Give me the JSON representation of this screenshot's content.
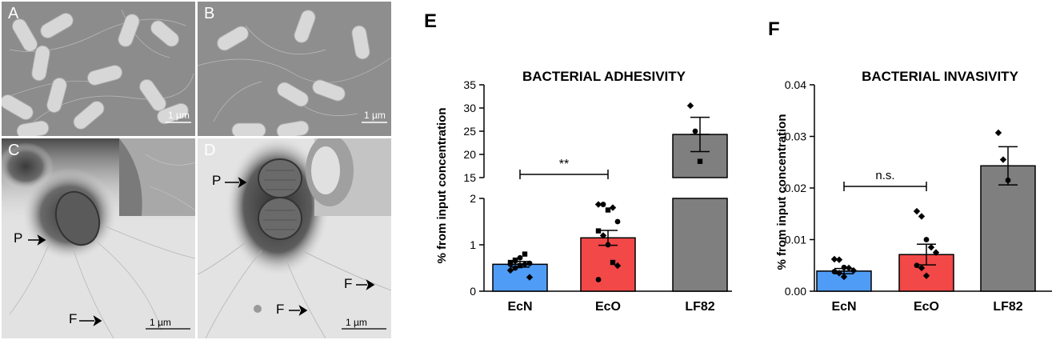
{
  "micrographs": {
    "panels": [
      {
        "id": "A",
        "letter": "A",
        "scale_label": "1 µm",
        "arrows": []
      },
      {
        "id": "B",
        "letter": "B",
        "scale_label": "1 µm",
        "arrows": []
      },
      {
        "id": "C",
        "letter": "C",
        "scale_label": "1 µm",
        "arrows": [
          {
            "letter": "P"
          },
          {
            "letter": "F"
          }
        ]
      },
      {
        "id": "D",
        "letter": "D",
        "scale_label": "1 µm",
        "arrows": [
          {
            "letter": "P"
          },
          {
            "letter": "F"
          },
          {
            "letter": "F"
          }
        ]
      }
    ]
  },
  "chart_data": [
    {
      "panel": "E",
      "type": "bar",
      "title": "BACTERIAL ADHESIVITY",
      "ylabel": "% from input concentration",
      "categories": [
        "EcN",
        "EcO",
        "LF82"
      ],
      "colors": [
        "#4f9cf7",
        "#f24848",
        "#7f7f7f"
      ],
      "broken_axis": {
        "lower": {
          "ylim": [
            0,
            2
          ],
          "ticks": [
            "0",
            "1",
            "2"
          ]
        },
        "upper": {
          "ylim": [
            15,
            35
          ],
          "ticks": [
            "15",
            "20",
            "25",
            "30",
            "35"
          ]
        }
      },
      "series": [
        {
          "values": [
            0.58,
            1.15,
            24.3
          ],
          "sem": [
            0.06,
            0.16,
            3.7
          ],
          "points": [
            [
              0.45,
              0.5,
              0.55,
              0.58,
              0.6,
              0.62,
              0.65,
              0.72,
              0.8,
              0.3,
              0.58,
              0.67
            ],
            [
              1.87,
              1.87,
              1.75,
              1.8,
              1.5,
              1.3,
              1.2,
              1.0,
              0.62,
              0.55,
              0.25
            ],
            [
              30.5,
              25.0,
              18.5
            ]
          ]
        }
      ],
      "significance": {
        "from": "EcN",
        "to": "EcO",
        "label": "**"
      }
    },
    {
      "panel": "F",
      "type": "bar",
      "title": "BACTERIAL INVASIVITY",
      "ylabel": "% from input concentration",
      "categories": [
        "EcN",
        "EcO",
        "LF82"
      ],
      "colors": [
        "#4f9cf7",
        "#f24848",
        "#7f7f7f"
      ],
      "ylim": [
        0,
        0.04
      ],
      "ticks": [
        "0.00",
        "0.01",
        "0.02",
        "0.03",
        "0.04"
      ],
      "series": [
        {
          "values": [
            0.0039,
            0.0071,
            0.0243
          ],
          "sem": [
            0.0005,
            0.002,
            0.0037
          ],
          "points": [
            [
              0.0062,
              0.0061,
              0.0046,
              0.0045,
              0.004,
              0.0038,
              0.0035,
              0.0028
            ],
            [
              0.0155,
              0.0145,
              0.01,
              0.0085,
              0.0075,
              0.005,
              0.0045,
              0.003
            ],
            [
              0.0307,
              0.0255,
              0.0215
            ]
          ]
        }
      ],
      "significance": {
        "from": "EcN",
        "to": "EcO",
        "label": "n.s."
      }
    }
  ]
}
